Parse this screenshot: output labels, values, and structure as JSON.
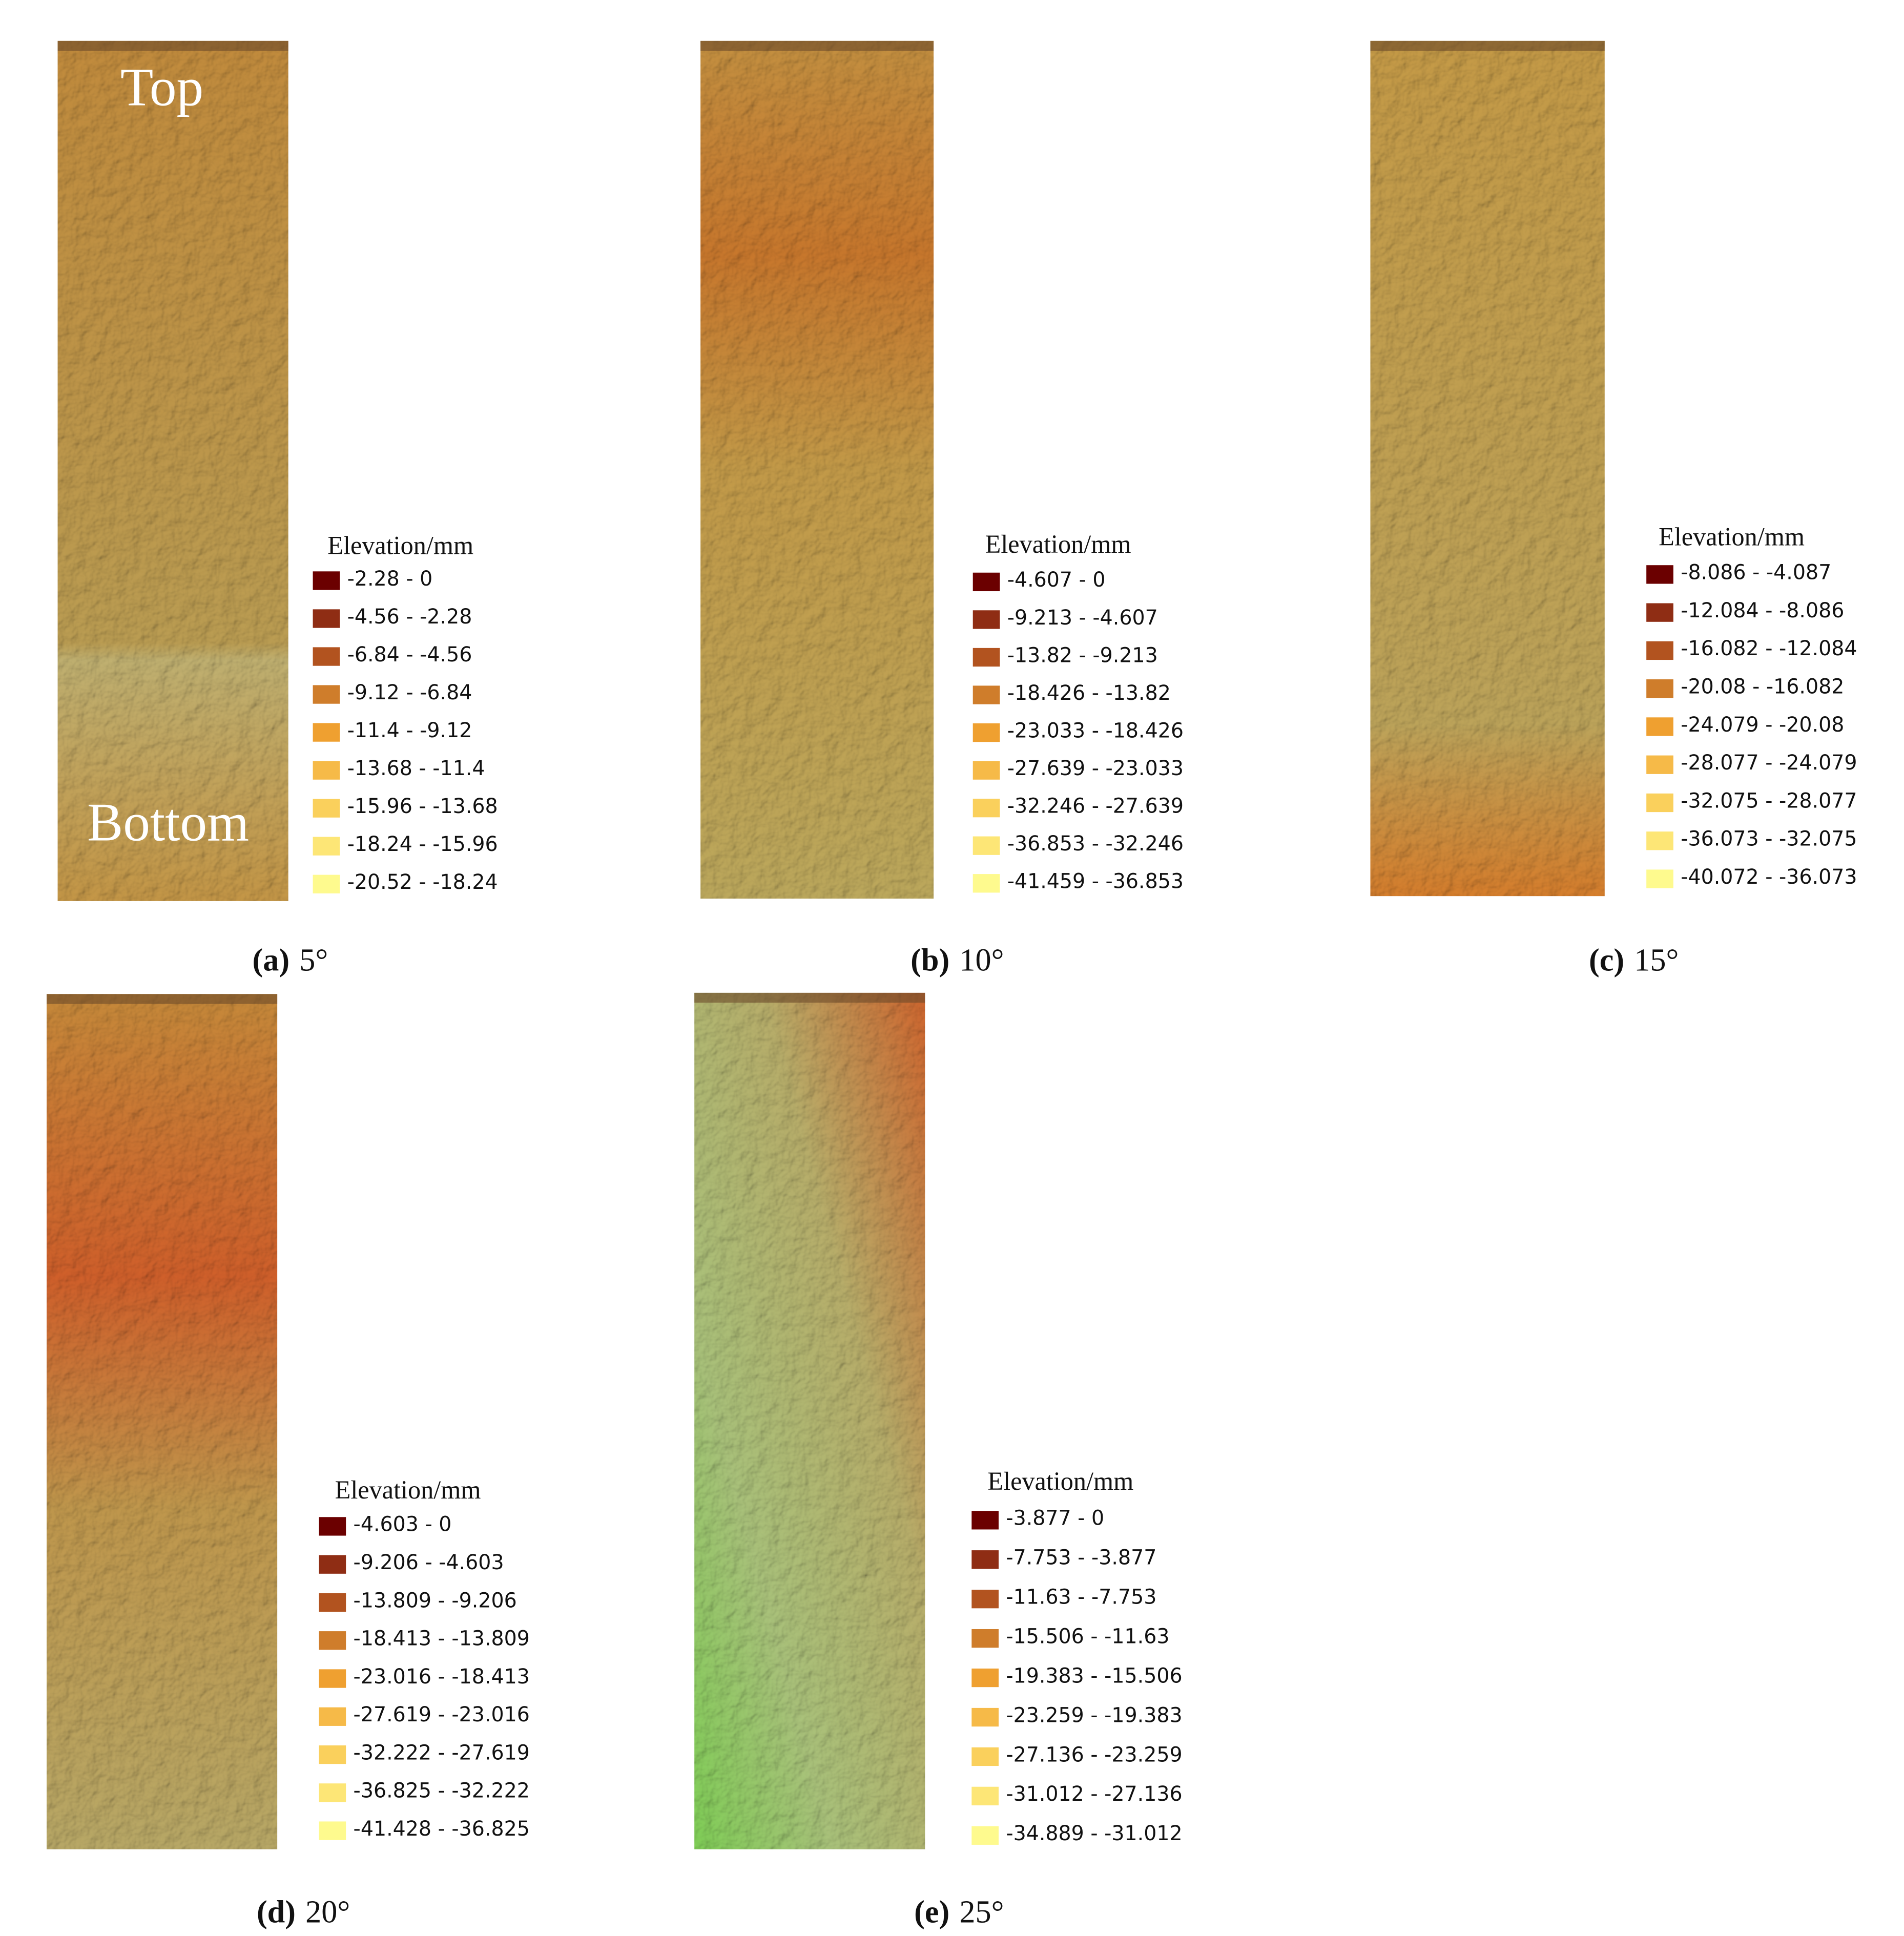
{
  "legend_colors": [
    "#6b0000",
    "#8f2d14",
    "#b2531f",
    "#cf7d2b",
    "#efa030",
    "#f6ba48",
    "#fad05c",
    "#fde676",
    "#fefa8e"
  ],
  "panels": [
    {
      "label": "(a)",
      "angle": "5°",
      "legend_title": "Elevation/mm",
      "image_labels": [
        "Top",
        "Bottom"
      ],
      "items": [
        "-2.28 - 0",
        "-4.56 - -2.28",
        "-6.84 - -4.56",
        "-9.12 - -6.84",
        "-11.4 - -9.12",
        "-13.68 - -11.4",
        "-15.96 - -13.68",
        "-18.24 - -15.96",
        "-20.52 - -18.24"
      ]
    },
    {
      "label": "(b)",
      "angle": "10°",
      "legend_title": "Elevation/mm",
      "items": [
        "-4.607 - 0",
        "-9.213 - -4.607",
        "-13.82 - -9.213",
        "-18.426 - -13.82",
        "-23.033 - -18.426",
        "-27.639 - -23.033",
        "-32.246 - -27.639",
        "-36.853 - -32.246",
        "-41.459 - -36.853"
      ]
    },
    {
      "label": "(c)",
      "angle": "15°",
      "legend_title": "Elevation/mm",
      "items": [
        "-8.086 - -4.087",
        "-12.084 - -8.086",
        "-16.082 - -12.084",
        "-20.08 - -16.082",
        "-24.079 - -20.08",
        "-28.077 - -24.079",
        "-32.075 - -28.077",
        "-36.073 - -32.075",
        "-40.072 - -36.073"
      ]
    },
    {
      "label": "(d)",
      "angle": "20°",
      "legend_title": "Elevation/mm",
      "items": [
        "-4.603 - 0",
        "-9.206 - -4.603",
        "-13.809 - -9.206",
        "-18.413 - -13.809",
        "-23.016 - -18.413",
        "-27.619 - -23.016",
        "-32.222 - -27.619",
        "-36.825 - -32.222",
        "-41.428 - -36.825"
      ]
    },
    {
      "label": "(e)",
      "angle": "25°",
      "legend_title": "Elevation/mm",
      "items": [
        "-3.877 - 0",
        "-7.753 - -3.877",
        "-11.63 - -7.753",
        "-15.506 - -11.63",
        "-19.383 - -15.506",
        "-23.259 - -19.383",
        "-27.136 - -23.259",
        "-31.012 - -27.136",
        "-34.889 - -31.012"
      ]
    }
  ]
}
